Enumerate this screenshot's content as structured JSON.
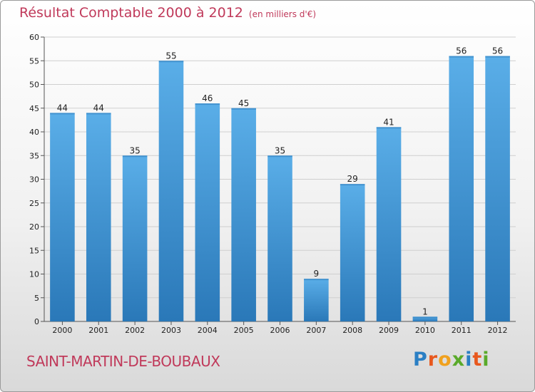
{
  "chart_data": {
    "type": "bar",
    "title": "Résultat Comptable 2000 à 2012",
    "unit": "(en milliers d'€)",
    "categories": [
      "2000",
      "2001",
      "2002",
      "2003",
      "2004",
      "2005",
      "2006",
      "2007",
      "2008",
      "2009",
      "2010",
      "2011",
      "2012"
    ],
    "values": [
      44,
      44,
      35,
      55,
      46,
      45,
      35,
      9,
      29,
      41,
      1,
      56,
      56
    ],
    "ylim": [
      0,
      60
    ],
    "yticks": [
      0,
      5,
      10,
      15,
      20,
      25,
      30,
      35,
      40,
      45,
      50,
      55,
      60
    ],
    "xlabel": "",
    "ylabel": "",
    "grid": true,
    "bar_color": "#4a9fdd",
    "bar_color_dark": "#2a78b8"
  },
  "location": {
    "name": "SAINT-MARTIN-DE-BOUBAUX"
  },
  "brand": {
    "letters": [
      "P",
      "r",
      "o",
      "x",
      "i",
      "t",
      "i"
    ],
    "colors": [
      "#2a7fc4",
      "#e8581e",
      "#f0a11e",
      "#5aaa2a",
      "#2a7fc4",
      "#e8581e",
      "#5aaa2a"
    ]
  }
}
